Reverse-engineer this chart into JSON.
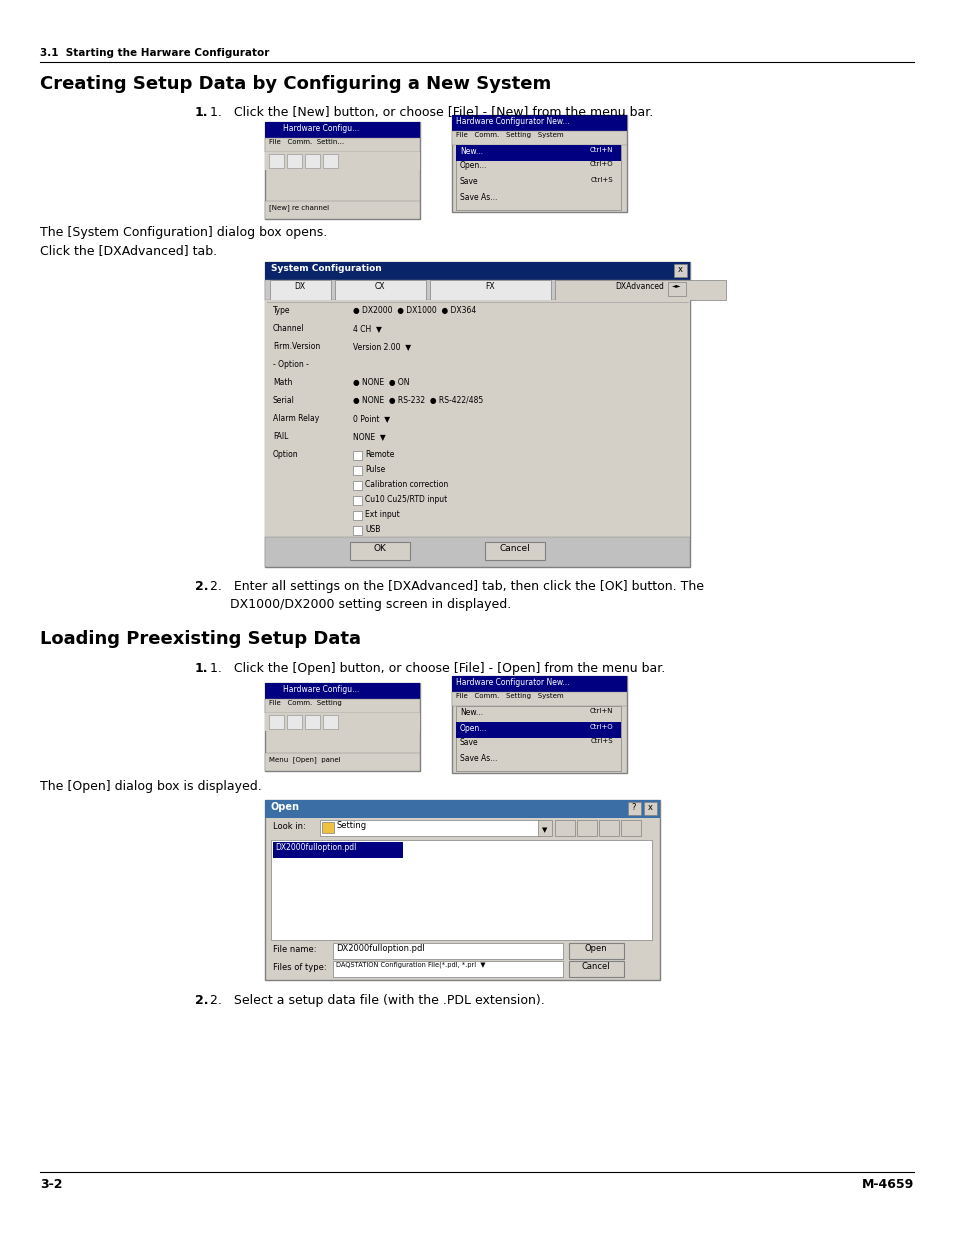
{
  "bg_color": "#ffffff",
  "page_width": 9.54,
  "page_height": 12.35,
  "dpi": 100,
  "header_text": "3.1  Starting the Harware Configurator",
  "section1_title": "Creating Setup Data by Configuring a New System",
  "step1_text": "1.   Click the [New] button, or choose [File] - [New] from the menu bar.",
  "note1": "The [System Configuration] dialog box opens.",
  "note2": "Click the [DXAdvanced] tab.",
  "step2_line1": "2.   Enter all settings on the [DXAdvanced] tab, then click the [OK] button. The",
  "step2_line2": "     DX1000/DX2000 setting screen in displayed.",
  "section2_title": "Loading Preexisting Setup Data",
  "step3_text": "1.   Click the [Open] button, or choose [File] - [Open] from the menu bar.",
  "open_note": "The [Open] dialog box is displayed.",
  "step4_text": "2.   Select a setup data file (with the .PDL extension).",
  "footer_left": "3-2",
  "footer_right": "M-4659"
}
